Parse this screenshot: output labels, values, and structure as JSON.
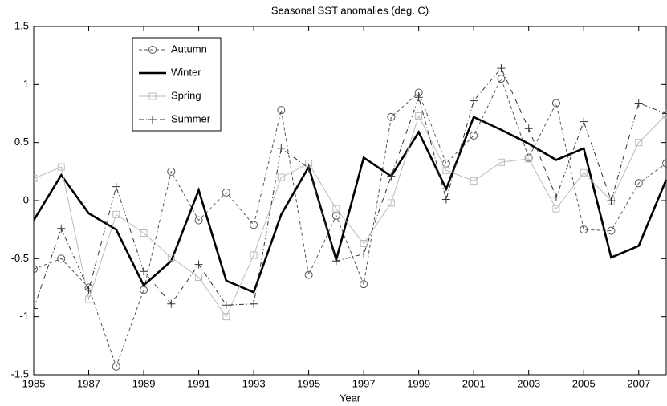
{
  "chart_data": {
    "type": "line",
    "title": "Seasonal SST anomalies (deg. C)",
    "xlabel": "Year",
    "x": [
      1985,
      1986,
      1987,
      1988,
      1989,
      1990,
      1991,
      1992,
      1993,
      1994,
      1995,
      1996,
      1997,
      1998,
      1999,
      2000,
      2001,
      2002,
      2003,
      2004,
      2005,
      2006,
      2007,
      2008
    ],
    "xlim": [
      1985,
      2008
    ],
    "xticks": [
      1985,
      1987,
      1989,
      1991,
      1993,
      1995,
      1997,
      1999,
      2001,
      2003,
      2005,
      2007
    ],
    "ylim": [
      -1.5,
      1.5
    ],
    "yticks": [
      -1.5,
      -1,
      -0.5,
      0,
      0.5,
      1,
      1.5
    ],
    "grid": false,
    "legend": "upper left",
    "series": [
      {
        "name": "Autumn",
        "color": "#555555",
        "linestyle": "dashed",
        "marker": "circle",
        "values": [
          -0.59,
          -0.5,
          -0.75,
          -1.43,
          -0.77,
          0.25,
          -0.17,
          0.07,
          -0.21,
          0.78,
          -0.64,
          -0.13,
          -0.72,
          0.72,
          0.93,
          0.32,
          0.56,
          1.05,
          0.37,
          0.84,
          -0.25,
          -0.26,
          0.15,
          0.32
        ]
      },
      {
        "name": "Winter",
        "color": "#000000",
        "linestyle": "solid",
        "marker": "none",
        "values": [
          -0.17,
          0.22,
          -0.11,
          -0.25,
          -0.73,
          -0.52,
          0.09,
          -0.69,
          -0.79,
          -0.12,
          0.29,
          -0.51,
          0.37,
          0.21,
          0.59,
          0.1,
          0.72,
          0.61,
          0.49,
          0.35,
          0.45,
          -0.49,
          -0.39,
          0.18
        ]
      },
      {
        "name": "Spring",
        "color": "#bbbbbb",
        "linestyle": "solid",
        "marker": "square",
        "values": [
          0.19,
          0.29,
          -0.85,
          -0.12,
          -0.28,
          -0.49,
          -0.66,
          -1.0,
          -0.47,
          0.2,
          0.32,
          -0.07,
          -0.37,
          -0.02,
          0.73,
          0.26,
          0.17,
          0.33,
          0.36,
          -0.07,
          0.24,
          0.0,
          0.5,
          0.74
        ]
      },
      {
        "name": "Summer",
        "color": "#333333",
        "linestyle": "dashdot",
        "marker": "plus",
        "values": [
          -0.93,
          -0.24,
          -0.77,
          0.12,
          -0.61,
          -0.89,
          -0.55,
          -0.9,
          -0.89,
          0.45,
          0.28,
          -0.52,
          -0.46,
          0.21,
          0.89,
          0.01,
          0.86,
          1.14,
          0.62,
          0.03,
          0.68,
          0.0,
          0.84,
          0.75
        ]
      }
    ]
  }
}
